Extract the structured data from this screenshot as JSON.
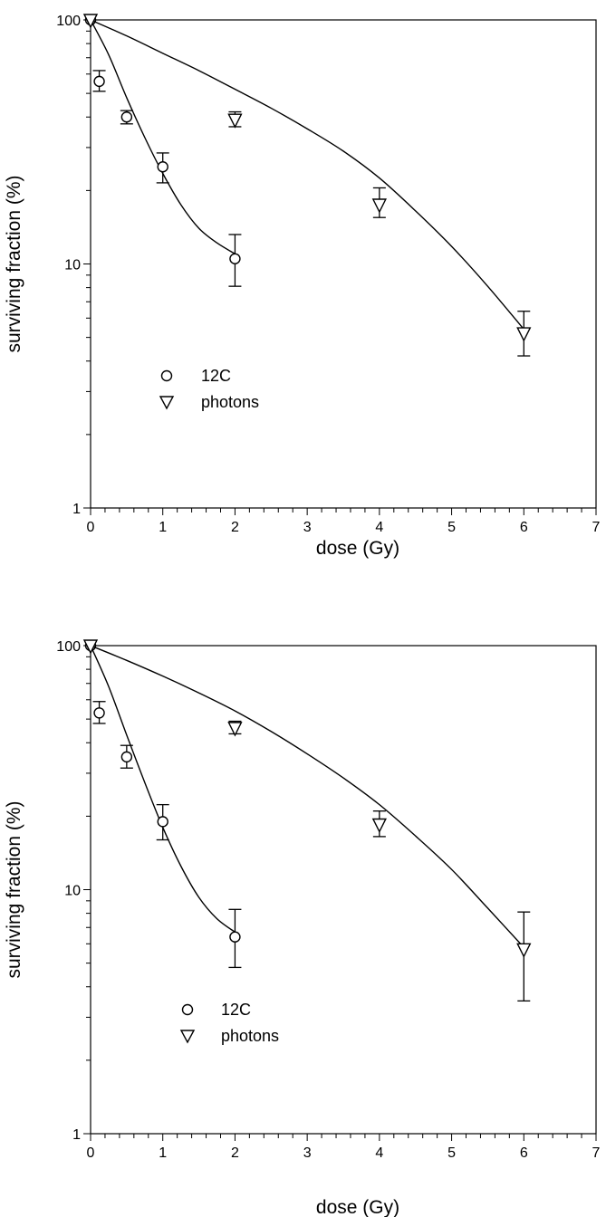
{
  "chart_data": [
    {
      "type": "scatter",
      "xlabel": "dose (Gy)",
      "ylabel": "surviving fraction (%)",
      "xlim": [
        0,
        7
      ],
      "ylim": [
        1,
        100
      ],
      "yscale": "log",
      "xticks": [
        "0",
        "1",
        "2",
        "3",
        "4",
        "5",
        "6",
        "7"
      ],
      "yticks": [
        "1",
        "10",
        "100"
      ],
      "legend_position": "lower-left",
      "series": [
        {
          "name": "12C",
          "marker": "circle",
          "points": [
            {
              "x": 0,
              "y": 100,
              "err_low": 100,
              "err_high": 100
            },
            {
              "x": 0.12,
              "y": 56,
              "err_low": 51,
              "err_high": 62
            },
            {
              "x": 0.5,
              "y": 40,
              "err_low": 37.5,
              "err_high": 42.5
            },
            {
              "x": 1,
              "y": 25,
              "err_low": 21.5,
              "err_high": 28.5
            },
            {
              "x": 2,
              "y": 10.5,
              "err_low": 8.1,
              "err_high": 13.2
            }
          ],
          "fit_line": [
            {
              "x": 0,
              "y": 100
            },
            {
              "x": 0.25,
              "y": 72
            },
            {
              "x": 0.5,
              "y": 48
            },
            {
              "x": 0.75,
              "y": 33
            },
            {
              "x": 1,
              "y": 23.5
            },
            {
              "x": 1.25,
              "y": 17.5
            },
            {
              "x": 1.5,
              "y": 14
            },
            {
              "x": 1.75,
              "y": 12.2
            },
            {
              "x": 2,
              "y": 11
            }
          ]
        },
        {
          "name": "photons",
          "marker": "triangle-down",
          "points": [
            {
              "x": 0,
              "y": 100,
              "err_low": 100,
              "err_high": 100
            },
            {
              "x": 2,
              "y": 39,
              "err_low": 36.5,
              "err_high": 42
            },
            {
              "x": 4,
              "y": 17.5,
              "err_low": 15.5,
              "err_high": 20.5
            },
            {
              "x": 6,
              "y": 5.2,
              "err_low": 4.2,
              "err_high": 6.4
            }
          ],
          "fit_line": [
            {
              "x": 0,
              "y": 100
            },
            {
              "x": 0.5,
              "y": 86
            },
            {
              "x": 1,
              "y": 73
            },
            {
              "x": 1.5,
              "y": 62
            },
            {
              "x": 2,
              "y": 52
            },
            {
              "x": 2.5,
              "y": 43.5
            },
            {
              "x": 3,
              "y": 35.8
            },
            {
              "x": 3.5,
              "y": 29
            },
            {
              "x": 4,
              "y": 22.5
            },
            {
              "x": 4.5,
              "y": 16.5
            },
            {
              "x": 5,
              "y": 11.8
            },
            {
              "x": 5.5,
              "y": 8.1
            },
            {
              "x": 6,
              "y": 5.4
            }
          ]
        }
      ]
    },
    {
      "type": "scatter",
      "xlabel": "dose (Gy)",
      "ylabel": "surviving fraction (%)",
      "xlim": [
        0,
        7
      ],
      "ylim": [
        1,
        100
      ],
      "yscale": "log",
      "xticks": [
        "0",
        "1",
        "2",
        "3",
        "4",
        "5",
        "6",
        "7"
      ],
      "yticks": [
        "1",
        "10",
        "100"
      ],
      "legend_position": "lower-left",
      "series": [
        {
          "name": "12C",
          "marker": "circle",
          "points": [
            {
              "x": 0,
              "y": 100,
              "err_low": 100,
              "err_high": 100
            },
            {
              "x": 0.12,
              "y": 53,
              "err_low": 48,
              "err_high": 59
            },
            {
              "x": 0.5,
              "y": 35,
              "err_low": 31.5,
              "err_high": 39
            },
            {
              "x": 1,
              "y": 19,
              "err_low": 16,
              "err_high": 22.3
            },
            {
              "x": 2,
              "y": 6.4,
              "err_low": 4.8,
              "err_high": 8.3
            }
          ],
          "fit_line": [
            {
              "x": 0,
              "y": 100
            },
            {
              "x": 0.25,
              "y": 68
            },
            {
              "x": 0.5,
              "y": 43
            },
            {
              "x": 0.75,
              "y": 27.5
            },
            {
              "x": 1,
              "y": 18
            },
            {
              "x": 1.25,
              "y": 12.5
            },
            {
              "x": 1.5,
              "y": 9.3
            },
            {
              "x": 1.75,
              "y": 7.6
            },
            {
              "x": 2,
              "y": 6.7
            }
          ]
        },
        {
          "name": "photons",
          "marker": "triangle-down",
          "points": [
            {
              "x": 0,
              "y": 100,
              "err_low": 100,
              "err_high": 100
            },
            {
              "x": 2,
              "y": 46,
              "err_low": 43.5,
              "err_high": 49
            },
            {
              "x": 4,
              "y": 18.5,
              "err_low": 16.5,
              "err_high": 21
            },
            {
              "x": 6,
              "y": 5.7,
              "err_low": 3.5,
              "err_high": 8.1
            }
          ],
          "fit_line": [
            {
              "x": 0,
              "y": 100
            },
            {
              "x": 0.5,
              "y": 87
            },
            {
              "x": 1,
              "y": 75
            },
            {
              "x": 1.5,
              "y": 64
            },
            {
              "x": 2,
              "y": 54
            },
            {
              "x": 2.5,
              "y": 44.5
            },
            {
              "x": 3,
              "y": 36
            },
            {
              "x": 3.5,
              "y": 28.7
            },
            {
              "x": 4,
              "y": 22.3
            },
            {
              "x": 4.5,
              "y": 16.6
            },
            {
              "x": 5,
              "y": 12.1
            },
            {
              "x": 5.5,
              "y": 8.4
            },
            {
              "x": 6,
              "y": 5.8
            }
          ]
        }
      ]
    }
  ]
}
